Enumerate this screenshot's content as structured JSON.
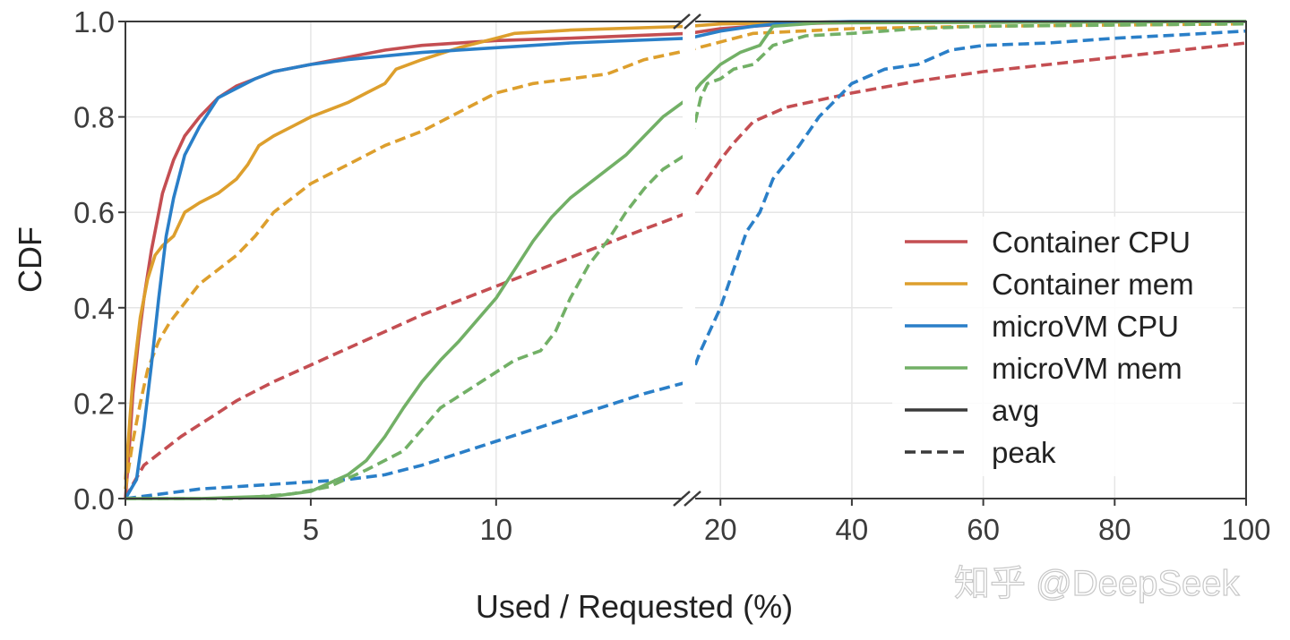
{
  "chart_data": {
    "type": "line",
    "xlabel": "Used / Requested (%)",
    "ylabel": "CDF",
    "grid": true,
    "broken_x_axis": true,
    "x_segments": [
      {
        "xlim": [
          0,
          15.2
        ],
        "ticks": [
          0,
          5,
          10
        ],
        "tick_labels": [
          "0",
          "5",
          "10"
        ]
      },
      {
        "xlim": [
          15.2,
          100
        ],
        "ticks": [
          20,
          40,
          60,
          80,
          100
        ],
        "tick_labels": [
          "20",
          "40",
          "60",
          "80",
          "100"
        ]
      }
    ],
    "ylim": [
      0,
      1.0
    ],
    "y_ticks": [
      0,
      0.2,
      0.4,
      0.6,
      0.8,
      1.0
    ],
    "y_tick_labels": [
      "0.0",
      "0.2",
      "0.4",
      "0.6",
      "0.8",
      "1.0"
    ],
    "legend_position": "lower-right",
    "legend": [
      {
        "label": "Container CPU",
        "color": "#c44e52",
        "style": "solid"
      },
      {
        "label": "Container mem",
        "color": "#dd9f2d",
        "style": "solid"
      },
      {
        "label": "microVM CPU",
        "color": "#2a7fc8",
        "style": "solid"
      },
      {
        "label": "microVM mem",
        "color": "#72b066",
        "style": "solid"
      },
      {
        "label": "avg",
        "color": "#3a3a3a",
        "style": "solid"
      },
      {
        "label": "peak",
        "color": "#3a3a3a",
        "style": "dashed"
      }
    ],
    "series": [
      {
        "name": "Container CPU avg",
        "color": "#c44e52",
        "style": "solid",
        "points": [
          [
            0,
            0
          ],
          [
            0.1,
            0.1
          ],
          [
            0.2,
            0.22
          ],
          [
            0.35,
            0.33
          ],
          [
            0.5,
            0.42
          ],
          [
            0.7,
            0.52
          ],
          [
            1,
            0.64
          ],
          [
            1.3,
            0.71
          ],
          [
            1.6,
            0.76
          ],
          [
            2,
            0.8
          ],
          [
            2.5,
            0.84
          ],
          [
            3,
            0.865
          ],
          [
            3.5,
            0.88
          ],
          [
            4,
            0.895
          ],
          [
            5,
            0.91
          ],
          [
            6,
            0.925
          ],
          [
            7,
            0.94
          ],
          [
            8,
            0.95
          ],
          [
            10,
            0.96
          ],
          [
            12,
            0.965
          ],
          [
            15.2,
            0.975
          ],
          [
            20,
            0.985
          ],
          [
            30,
            0.995
          ],
          [
            40,
            0.998
          ],
          [
            100,
            1.0
          ]
        ]
      },
      {
        "name": "Container CPU peak",
        "color": "#c44e52",
        "style": "dashed",
        "points": [
          [
            0,
            0
          ],
          [
            0.2,
            0.03
          ],
          [
            0.5,
            0.07
          ],
          [
            1,
            0.1
          ],
          [
            1.5,
            0.13
          ],
          [
            2,
            0.155
          ],
          [
            2.5,
            0.18
          ],
          [
            3,
            0.205
          ],
          [
            4,
            0.245
          ],
          [
            5,
            0.28
          ],
          [
            6,
            0.315
          ],
          [
            7,
            0.35
          ],
          [
            8,
            0.385
          ],
          [
            9,
            0.415
          ],
          [
            10,
            0.445
          ],
          [
            11,
            0.475
          ],
          [
            12,
            0.505
          ],
          [
            13,
            0.535
          ],
          [
            14,
            0.565
          ],
          [
            15.2,
            0.6
          ],
          [
            16,
            0.63
          ],
          [
            18,
            0.67
          ],
          [
            20,
            0.71
          ],
          [
            22,
            0.745
          ],
          [
            25,
            0.79
          ],
          [
            30,
            0.82
          ],
          [
            35,
            0.835
          ],
          [
            40,
            0.85
          ],
          [
            50,
            0.875
          ],
          [
            60,
            0.895
          ],
          [
            70,
            0.91
          ],
          [
            80,
            0.925
          ],
          [
            90,
            0.94
          ],
          [
            100,
            0.955
          ]
        ]
      },
      {
        "name": "Container mem avg",
        "color": "#dd9f2d",
        "style": "solid",
        "points": [
          [
            0,
            0.04
          ],
          [
            0.2,
            0.25
          ],
          [
            0.4,
            0.38
          ],
          [
            0.6,
            0.46
          ],
          [
            0.8,
            0.51
          ],
          [
            1,
            0.53
          ],
          [
            1.3,
            0.55
          ],
          [
            1.6,
            0.6
          ],
          [
            2,
            0.62
          ],
          [
            2.5,
            0.64
          ],
          [
            3,
            0.67
          ],
          [
            3.3,
            0.7
          ],
          [
            3.6,
            0.74
          ],
          [
            4,
            0.76
          ],
          [
            4.5,
            0.78
          ],
          [
            5,
            0.8
          ],
          [
            6,
            0.83
          ],
          [
            6.5,
            0.85
          ],
          [
            7,
            0.87
          ],
          [
            7.3,
            0.9
          ],
          [
            8,
            0.92
          ],
          [
            9,
            0.945
          ],
          [
            10,
            0.965
          ],
          [
            10.5,
            0.975
          ],
          [
            12,
            0.982
          ],
          [
            15.2,
            0.99
          ],
          [
            20,
            0.995
          ],
          [
            40,
            1.0
          ],
          [
            100,
            1.0
          ]
        ]
      },
      {
        "name": "Container mem peak",
        "color": "#dd9f2d",
        "style": "dashed",
        "points": [
          [
            0,
            0.02
          ],
          [
            0.2,
            0.12
          ],
          [
            0.4,
            0.2
          ],
          [
            0.6,
            0.27
          ],
          [
            0.9,
            0.33
          ],
          [
            1.2,
            0.37
          ],
          [
            1.6,
            0.41
          ],
          [
            2,
            0.45
          ],
          [
            2.5,
            0.48
          ],
          [
            3,
            0.51
          ],
          [
            3.5,
            0.55
          ],
          [
            4,
            0.6
          ],
          [
            4.5,
            0.63
          ],
          [
            5,
            0.66
          ],
          [
            6,
            0.7
          ],
          [
            7,
            0.74
          ],
          [
            8,
            0.77
          ],
          [
            9,
            0.81
          ],
          [
            10,
            0.85
          ],
          [
            11,
            0.87
          ],
          [
            12,
            0.88
          ],
          [
            13,
            0.89
          ],
          [
            14,
            0.92
          ],
          [
            15.2,
            0.94
          ],
          [
            18,
            0.95
          ],
          [
            25,
            0.975
          ],
          [
            40,
            0.985
          ],
          [
            60,
            0.99
          ],
          [
            100,
            0.995
          ]
        ]
      },
      {
        "name": "microVM CPU avg",
        "color": "#2a7fc8",
        "style": "solid",
        "points": [
          [
            0,
            0
          ],
          [
            0.3,
            0.04
          ],
          [
            0.5,
            0.15
          ],
          [
            0.7,
            0.28
          ],
          [
            0.9,
            0.42
          ],
          [
            1.1,
            0.55
          ],
          [
            1.3,
            0.63
          ],
          [
            1.6,
            0.72
          ],
          [
            2,
            0.78
          ],
          [
            2.5,
            0.84
          ],
          [
            3,
            0.86
          ],
          [
            3.5,
            0.88
          ],
          [
            4,
            0.895
          ],
          [
            5,
            0.91
          ],
          [
            6,
            0.92
          ],
          [
            8,
            0.935
          ],
          [
            10,
            0.945
          ],
          [
            12,
            0.955
          ],
          [
            15.2,
            0.965
          ],
          [
            20,
            0.98
          ],
          [
            25,
            0.99
          ],
          [
            30,
            0.997
          ],
          [
            40,
            1.0
          ],
          [
            100,
            1.0
          ]
        ]
      },
      {
        "name": "microVM CPU peak",
        "color": "#2a7fc8",
        "style": "dashed",
        "points": [
          [
            0,
            0
          ],
          [
            1,
            0.01
          ],
          [
            2,
            0.02
          ],
          [
            3,
            0.025
          ],
          [
            4,
            0.03
          ],
          [
            5,
            0.035
          ],
          [
            6,
            0.04
          ],
          [
            7,
            0.05
          ],
          [
            8,
            0.07
          ],
          [
            9,
            0.095
          ],
          [
            10,
            0.12
          ],
          [
            11,
            0.145
          ],
          [
            12,
            0.17
          ],
          [
            13,
            0.195
          ],
          [
            14,
            0.22
          ],
          [
            15.2,
            0.245
          ],
          [
            17,
            0.31
          ],
          [
            20,
            0.4
          ],
          [
            23,
            0.52
          ],
          [
            24,
            0.56
          ],
          [
            26,
            0.6
          ],
          [
            28,
            0.67
          ],
          [
            32,
            0.74
          ],
          [
            35,
            0.8
          ],
          [
            40,
            0.87
          ],
          [
            45,
            0.9
          ],
          [
            50,
            0.91
          ],
          [
            55,
            0.94
          ],
          [
            60,
            0.95
          ],
          [
            70,
            0.955
          ],
          [
            80,
            0.965
          ],
          [
            90,
            0.972
          ],
          [
            100,
            0.98
          ]
        ]
      },
      {
        "name": "microVM mem avg",
        "color": "#72b066",
        "style": "solid",
        "points": [
          [
            0,
            0
          ],
          [
            2,
            0
          ],
          [
            4,
            0.005
          ],
          [
            5,
            0.015
          ],
          [
            6,
            0.05
          ],
          [
            6.5,
            0.08
          ],
          [
            7,
            0.13
          ],
          [
            7.5,
            0.19
          ],
          [
            8,
            0.245
          ],
          [
            8.5,
            0.29
          ],
          [
            9,
            0.33
          ],
          [
            9.5,
            0.375
          ],
          [
            10,
            0.42
          ],
          [
            10.5,
            0.48
          ],
          [
            11,
            0.54
          ],
          [
            11.5,
            0.59
          ],
          [
            12,
            0.63
          ],
          [
            12.5,
            0.66
          ],
          [
            13,
            0.69
          ],
          [
            13.5,
            0.72
          ],
          [
            14,
            0.76
          ],
          [
            14.5,
            0.8
          ],
          [
            15.2,
            0.84
          ],
          [
            17,
            0.87
          ],
          [
            20,
            0.91
          ],
          [
            23,
            0.935
          ],
          [
            26,
            0.95
          ],
          [
            28,
            0.99
          ],
          [
            35,
            0.997
          ],
          [
            100,
            1.0
          ]
        ]
      },
      {
        "name": "microVM mem peak",
        "color": "#72b066",
        "style": "dashed",
        "points": [
          [
            0,
            0
          ],
          [
            3,
            0
          ],
          [
            4.5,
            0.01
          ],
          [
            5.5,
            0.025
          ],
          [
            6.5,
            0.06
          ],
          [
            7.5,
            0.1
          ],
          [
            8.5,
            0.19
          ],
          [
            9.5,
            0.24
          ],
          [
            10.5,
            0.29
          ],
          [
            11.2,
            0.31
          ],
          [
            11.6,
            0.35
          ],
          [
            12,
            0.42
          ],
          [
            12.5,
            0.49
          ],
          [
            13,
            0.54
          ],
          [
            13.5,
            0.6
          ],
          [
            14,
            0.65
          ],
          [
            14.5,
            0.69
          ],
          [
            15.2,
            0.725
          ],
          [
            16,
            0.78
          ],
          [
            17,
            0.84
          ],
          [
            18,
            0.87
          ],
          [
            20,
            0.88
          ],
          [
            22,
            0.9
          ],
          [
            25,
            0.91
          ],
          [
            28,
            0.95
          ],
          [
            33,
            0.97
          ],
          [
            40,
            0.975
          ],
          [
            50,
            0.985
          ],
          [
            60,
            0.99
          ],
          [
            100,
            0.995
          ]
        ]
      }
    ]
  },
  "watermark": "知乎 @DeepSeek"
}
